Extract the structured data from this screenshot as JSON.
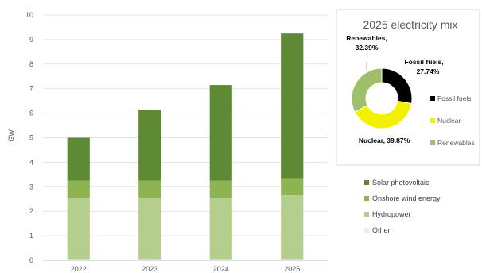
{
  "chart_data": [
    {
      "type": "bar",
      "stacked": true,
      "title": "",
      "xlabel": "",
      "ylabel": "GW",
      "ylim": [
        0,
        10
      ],
      "yticks": [
        0,
        1,
        2,
        3,
        4,
        5,
        6,
        7,
        8,
        9,
        10
      ],
      "grid": true,
      "legend_position": "right",
      "categories": [
        "2022",
        "2023",
        "2024",
        "2025"
      ],
      "series": [
        {
          "name": "Other",
          "values": [
            0.05,
            0.05,
            0.05,
            0.05
          ],
          "color": "#ececec"
        },
        {
          "name": "Hydropower",
          "values": [
            2.5,
            2.5,
            2.5,
            2.6
          ],
          "color": "#b4cf8d"
        },
        {
          "name": "Onshore wind energy",
          "values": [
            0.7,
            0.7,
            0.7,
            0.7
          ],
          "color": "#8db450"
        },
        {
          "name": "Solar photovoltaic",
          "values": [
            1.75,
            2.9,
            3.9,
            5.9
          ],
          "color": "#5e8a35"
        }
      ]
    },
    {
      "type": "pie",
      "donut": true,
      "title": "2025 electricity mix",
      "legend_position": "right",
      "slices": [
        {
          "name": "Fossil fuels",
          "label": "Fossil fuels,",
          "value_label": "27.74%",
          "value": 27.74,
          "color": "#000000"
        },
        {
          "name": "Nuclear",
          "label": "Nuclear, 39.87%",
          "value_label": "",
          "value": 39.87,
          "color": "#f2f200"
        },
        {
          "name": "Renewables",
          "label": "Renewables,",
          "value_label": "32.39%",
          "value": 32.39,
          "color": "#9fbf6b"
        }
      ]
    }
  ]
}
